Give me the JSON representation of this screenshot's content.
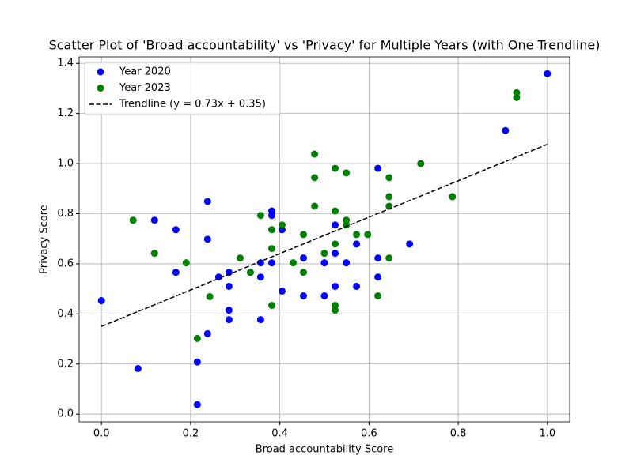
{
  "chart_data": {
    "type": "scatter",
    "title": "Scatter Plot of 'Broad accountability' vs 'Privacy' for Multiple Years (with One Trendline)",
    "x_label": "Broad accountability Score",
    "y_label": "Privacy Score",
    "xlim": [
      -0.05,
      1.05
    ],
    "ylim": [
      -0.031,
      1.426
    ],
    "xticks": [
      {
        "value": 0,
        "label": "0.0"
      },
      {
        "value": 0.2,
        "label": "0.2"
      },
      {
        "value": 0.4,
        "label": "0.4"
      },
      {
        "value": 0.6,
        "label": "0.6"
      },
      {
        "value": 0.8,
        "label": "0.8"
      },
      {
        "value": 1,
        "label": "1.0"
      }
    ],
    "yticks": [
      {
        "value": 0,
        "label": "0.0"
      },
      {
        "value": 0.2,
        "label": "0.2"
      },
      {
        "value": 0.4,
        "label": "0.4"
      },
      {
        "value": 0.6,
        "label": "0.6"
      },
      {
        "value": 0.8,
        "label": "0.8"
      },
      {
        "value": 1,
        "label": "1.0"
      },
      {
        "value": 1.2,
        "label": "1.2"
      },
      {
        "value": 1.4,
        "label": "1.4"
      }
    ],
    "grid": true,
    "legend": "upper left",
    "series": [
      {
        "name": "Year 2020",
        "color": "#0000ff",
        "x": [
          0,
          0.082,
          0.119,
          0.167,
          0.167,
          0.215,
          0.215,
          0.238,
          0.238,
          0.238,
          0.263,
          0.286,
          0.286,
          0.286,
          0.286,
          0.357,
          0.357,
          0.357,
          0.382,
          0.382,
          0.382,
          0.405,
          0.405,
          0.453,
          0.453,
          0.5,
          0.5,
          0.524,
          0.524,
          0.524,
          0.549,
          0.572,
          0.572,
          0.62,
          0.62,
          0.62,
          0.691,
          0.906,
          1.0
        ],
        "values": [
          0.453,
          0.182,
          0.774,
          0.736,
          0.566,
          0.208,
          0.038,
          0.849,
          0.698,
          0.321,
          0.547,
          0.566,
          0.51,
          0.415,
          0.377,
          0.604,
          0.547,
          0.377,
          0.811,
          0.793,
          0.604,
          0.736,
          0.491,
          0.623,
          0.472,
          0.604,
          0.472,
          0.755,
          0.642,
          0.51,
          0.604,
          0.679,
          0.51,
          0.981,
          0.623,
          0.547,
          0.679,
          1.132,
          1.359
        ]
      },
      {
        "name": "Year 2023",
        "color": "#008000",
        "x": [
          0.071,
          0.119,
          0.19,
          0.215,
          0.243,
          0.311,
          0.334,
          0.357,
          0.382,
          0.382,
          0.382,
          0.405,
          0.43,
          0.453,
          0.453,
          0.478,
          0.478,
          0.478,
          0.5,
          0.524,
          0.524,
          0.524,
          0.524,
          0.524,
          0.549,
          0.549,
          0.549,
          0.572,
          0.597,
          0.62,
          0.645,
          0.645,
          0.645,
          0.645,
          0.716,
          0.787,
          0.931,
          0.931
        ],
        "values": [
          0.774,
          0.642,
          0.604,
          0.302,
          0.469,
          0.623,
          0.566,
          0.793,
          0.736,
          0.661,
          0.434,
          0.755,
          0.604,
          0.717,
          0.566,
          1.038,
          0.944,
          0.83,
          0.642,
          0.981,
          0.811,
          0.679,
          0.434,
          0.415,
          0.963,
          0.774,
          0.755,
          0.717,
          0.717,
          0.472,
          0.944,
          0.868,
          0.83,
          0.623,
          1.0,
          0.868,
          1.283,
          1.264
        ]
      },
      {
        "name": "Trendline (y = 0.73x + 0.35)",
        "color": "#000000",
        "line": "dashed",
        "x": [
          0,
          1.0
        ],
        "values": [
          0.35,
          1.077
        ]
      }
    ]
  }
}
